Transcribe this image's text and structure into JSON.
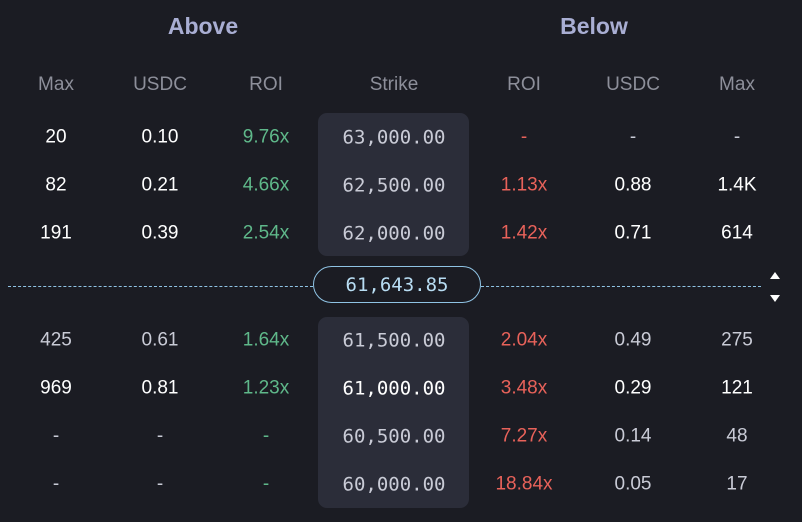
{
  "sections": {
    "above_title": "Above",
    "below_title": "Below"
  },
  "columns": {
    "above_max": "Max",
    "above_usdc": "USDC",
    "above_roi": "ROI",
    "strike": "Strike",
    "below_roi": "ROI",
    "below_usdc": "USDC",
    "below_max": "Max"
  },
  "current_price": "61,643.85",
  "rows_top": [
    {
      "above_max": "20",
      "above_usdc": "0.10",
      "above_roi": "9.76x",
      "strike": "63,000.00",
      "below_roi": "-",
      "below_usdc": "-",
      "below_max": "-"
    },
    {
      "above_max": "82",
      "above_usdc": "0.21",
      "above_roi": "4.66x",
      "strike": "62,500.00",
      "below_roi": "1.13x",
      "below_usdc": "0.88",
      "below_max": "1.4K"
    },
    {
      "above_max": "191",
      "above_usdc": "0.39",
      "above_roi": "2.54x",
      "strike": "62,000.00",
      "below_roi": "1.42x",
      "below_usdc": "0.71",
      "below_max": "614"
    }
  ],
  "rows_bottom": [
    {
      "above_max": "425",
      "above_usdc": "0.61",
      "above_roi": "1.64x",
      "strike": "61,500.00",
      "below_roi": "2.04x",
      "below_usdc": "0.49",
      "below_max": "275"
    },
    {
      "above_max": "969",
      "above_usdc": "0.81",
      "above_roi": "1.23x",
      "strike": "61,000.00",
      "below_roi": "3.48x",
      "below_usdc": "0.29",
      "below_max": "121"
    },
    {
      "above_max": "-",
      "above_usdc": "-",
      "above_roi": "-",
      "strike": "60,500.00",
      "below_roi": "7.27x",
      "below_usdc": "0.14",
      "below_max": "48"
    },
    {
      "above_max": "-",
      "above_usdc": "-",
      "above_roi": "-",
      "strike": "60,000.00",
      "below_roi": "18.84x",
      "below_usdc": "0.05",
      "below_max": "17"
    }
  ],
  "icons": {
    "scroll_up": "triangle-up-icon",
    "scroll_down": "triangle-down-icon"
  },
  "colors": {
    "background": "#1b1c23",
    "positive_roi": "#5fb88a",
    "negative_roi": "#e8625a",
    "accent_line": "#8fc3e4",
    "section_title": "#a9aed3"
  }
}
